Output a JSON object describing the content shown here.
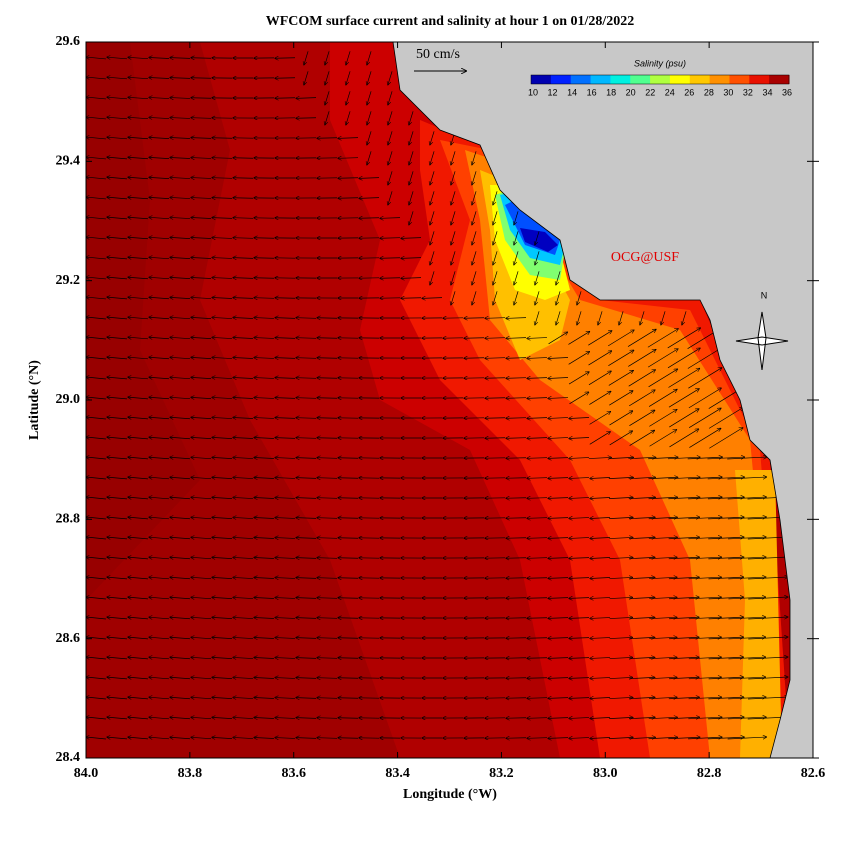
{
  "chart_data": {
    "type": "map",
    "title": "WFCOM surface current and salinity at hour 1 on 01/28/2022",
    "x_label": "Longitude (°W)",
    "y_label": "Latitude (°N)",
    "xlim": [
      84.0,
      82.6
    ],
    "ylim": [
      28.4,
      29.6
    ],
    "xticks": [
      {
        "value": 84,
        "label": "84.0"
      },
      83.8,
      83.6,
      83.4,
      83.2,
      {
        "value": 83,
        "label": "83.0"
      },
      82.8,
      82.6
    ],
    "yticks": [
      28.4,
      28.6,
      28.8,
      {
        "value": 29,
        "label": "29.0"
      },
      29.2,
      29.4,
      29.6
    ],
    "scale_label": "50 cm/s",
    "watermark": "OCG@USF",
    "north_label": "N",
    "colorbar": {
      "label": "Salinity (psu)",
      "ticks": [
        10,
        12,
        14,
        16,
        18,
        20,
        22,
        24,
        26,
        28,
        30,
        32,
        34,
        36
      ],
      "colors": [
        "#0000b0",
        "#0020ff",
        "#0070ff",
        "#00b8ff",
        "#00f0e0",
        "#50ff90",
        "#b0ff40",
        "#ffff00",
        "#ffc800",
        "#ff9000",
        "#ff5000",
        "#e81000",
        "#a80000"
      ]
    }
  }
}
